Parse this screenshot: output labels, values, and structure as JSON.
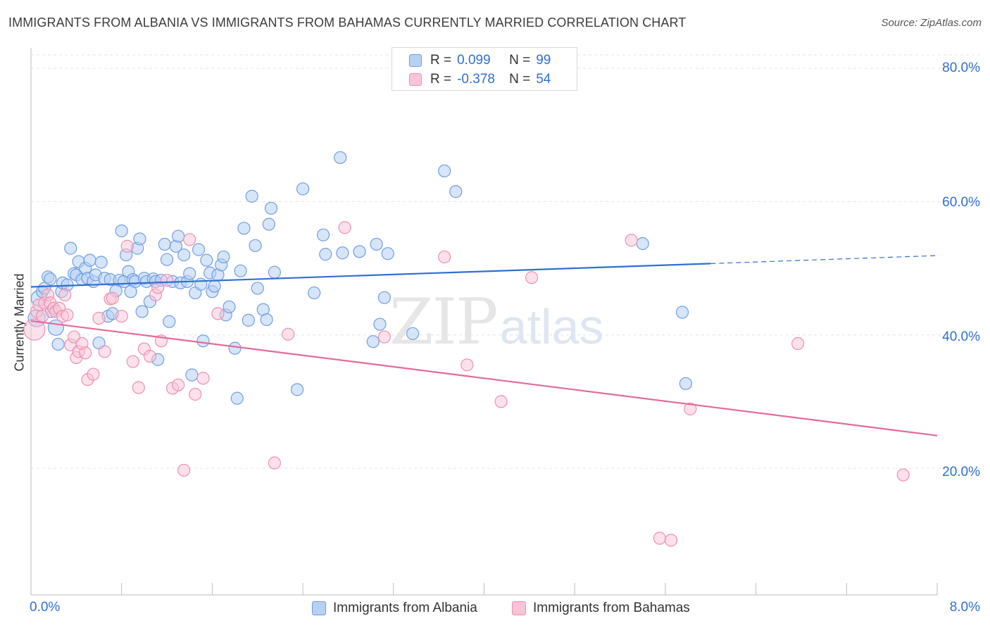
{
  "title": "IMMIGRANTS FROM ALBANIA VS IMMIGRANTS FROM BAHAMAS CURRENTLY MARRIED CORRELATION CHART",
  "source": "Source: ZipAtlas.com",
  "watermark": {
    "zip": "ZIP",
    "atlas": "atlas"
  },
  "legend": {
    "r_label": "R =",
    "n_label": "N =",
    "albania": {
      "r": "0.099",
      "n": "99"
    },
    "bahamas": {
      "r": "-0.378",
      "n": "54"
    }
  },
  "colors": {
    "albania_fill": "#b7d0f4",
    "albania_stroke": "#6f9fe0",
    "albania_line": "#2f6fd1",
    "bahamas_fill": "#f9c4d5",
    "bahamas_stroke": "#ee8fb0",
    "bahamas_line": "#e46a97",
    "tick_label": "#2f6fd1",
    "grid": "#e3e3e3"
  },
  "chart_data": {
    "type": "scatter",
    "title": "IMMIGRANTS FROM ALBANIA VS IMMIGRANTS FROM BAHAMAS CURRENTLY MARRIED CORRELATION CHART",
    "xlabel": "",
    "ylabel": "Currently Married",
    "xlim": [
      0,
      8
    ],
    "ylim": [
      1,
      82
    ],
    "x_tick_labels": [
      "0.0%",
      "8.0%"
    ],
    "y_ticks": [
      20,
      40,
      60,
      80
    ],
    "y_tick_labels": [
      "20.0%",
      "40.0%",
      "60.0%",
      "80.0%"
    ],
    "grid": true,
    "legend_position": "top-center",
    "series": [
      {
        "name": "Immigrants from Albania",
        "color": "#6f9fe0",
        "trend": {
          "x": [
            0,
            6.0
          ],
          "y": [
            47.2,
            50.7
          ],
          "dashed_extension_to_x": 8.0,
          "dashed_extension_y": 51.9
        },
        "points": [
          [
            0.05,
            42.5
          ],
          [
            0.07,
            45.5
          ],
          [
            0.1,
            46.5
          ],
          [
            0.12,
            47.0
          ],
          [
            0.15,
            48.7
          ],
          [
            0.17,
            48.4
          ],
          [
            0.18,
            43.5
          ],
          [
            0.22,
            41.1
          ],
          [
            0.24,
            38.6
          ],
          [
            0.27,
            46.5
          ],
          [
            0.28,
            47.8
          ],
          [
            0.32,
            47.5
          ],
          [
            0.35,
            53.0
          ],
          [
            0.38,
            49.2
          ],
          [
            0.4,
            49.0
          ],
          [
            0.42,
            51.0
          ],
          [
            0.45,
            48.3
          ],
          [
            0.48,
            50.0
          ],
          [
            0.5,
            48.5
          ],
          [
            0.52,
            51.2
          ],
          [
            0.55,
            48.0
          ],
          [
            0.57,
            49.0
          ],
          [
            0.6,
            38.8
          ],
          [
            0.62,
            50.9
          ],
          [
            0.65,
            48.5
          ],
          [
            0.68,
            42.8
          ],
          [
            0.7,
            48.3
          ],
          [
            0.72,
            43.2
          ],
          [
            0.75,
            46.6
          ],
          [
            0.78,
            48.2
          ],
          [
            0.8,
            55.6
          ],
          [
            0.82,
            48.0
          ],
          [
            0.84,
            52.0
          ],
          [
            0.86,
            49.5
          ],
          [
            0.88,
            46.5
          ],
          [
            0.9,
            48.3
          ],
          [
            0.92,
            48.0
          ],
          [
            0.94,
            53.0
          ],
          [
            0.96,
            54.4
          ],
          [
            0.98,
            43.5
          ],
          [
            1.0,
            48.5
          ],
          [
            1.02,
            48.0
          ],
          [
            1.05,
            45.0
          ],
          [
            1.08,
            48.4
          ],
          [
            1.1,
            48.0
          ],
          [
            1.12,
            36.3
          ],
          [
            1.15,
            48.2
          ],
          [
            1.18,
            53.6
          ],
          [
            1.2,
            51.3
          ],
          [
            1.22,
            42.0
          ],
          [
            1.25,
            48.0
          ],
          [
            1.28,
            53.3
          ],
          [
            1.3,
            54.8
          ],
          [
            1.32,
            47.8
          ],
          [
            1.35,
            52.0
          ],
          [
            1.38,
            48.0
          ],
          [
            1.4,
            49.2
          ],
          [
            1.42,
            34.0
          ],
          [
            1.45,
            46.3
          ],
          [
            1.48,
            52.8
          ],
          [
            1.5,
            47.6
          ],
          [
            1.52,
            39.1
          ],
          [
            1.55,
            51.2
          ],
          [
            1.58,
            49.3
          ],
          [
            1.6,
            46.5
          ],
          [
            1.62,
            47.3
          ],
          [
            1.65,
            49.0
          ],
          [
            1.68,
            50.5
          ],
          [
            1.7,
            51.7
          ],
          [
            1.72,
            43.0
          ],
          [
            1.75,
            44.2
          ],
          [
            1.8,
            38.0
          ],
          [
            1.82,
            30.5
          ],
          [
            1.85,
            49.6
          ],
          [
            1.88,
            56.0
          ],
          [
            1.92,
            42.2
          ],
          [
            1.95,
            60.8
          ],
          [
            1.98,
            53.4
          ],
          [
            2.0,
            47.0
          ],
          [
            2.05,
            43.8
          ],
          [
            2.08,
            42.3
          ],
          [
            2.1,
            56.6
          ],
          [
            2.12,
            59.0
          ],
          [
            2.15,
            49.4
          ],
          [
            2.35,
            31.8
          ],
          [
            2.4,
            61.9
          ],
          [
            2.5,
            46.3
          ],
          [
            2.58,
            55.0
          ],
          [
            2.6,
            52.1
          ],
          [
            2.73,
            66.6
          ],
          [
            2.75,
            52.3
          ],
          [
            2.9,
            52.5
          ],
          [
            3.02,
            39.0
          ],
          [
            3.05,
            53.6
          ],
          [
            3.08,
            41.6
          ],
          [
            3.12,
            45.6
          ],
          [
            3.15,
            52.2
          ],
          [
            3.37,
            40.2
          ],
          [
            3.65,
            64.6
          ],
          [
            3.75,
            61.5
          ],
          [
            5.4,
            53.7
          ],
          [
            5.75,
            43.4
          ],
          [
            5.78,
            32.7
          ]
        ]
      },
      {
        "name": "Immigrants from Bahamas",
        "color": "#ee8fb0",
        "trend": {
          "x": [
            0,
            8.0
          ],
          "y": [
            42.1,
            24.9
          ]
        },
        "points": [
          [
            0.03,
            40.8
          ],
          [
            0.05,
            43.5
          ],
          [
            0.07,
            44.5
          ],
          [
            0.1,
            42.8
          ],
          [
            0.12,
            44.8
          ],
          [
            0.15,
            46.0
          ],
          [
            0.17,
            44.8
          ],
          [
            0.2,
            44.0
          ],
          [
            0.22,
            43.5
          ],
          [
            0.25,
            44.0
          ],
          [
            0.28,
            42.8
          ],
          [
            0.3,
            46.0
          ],
          [
            0.32,
            43.0
          ],
          [
            0.35,
            38.5
          ],
          [
            0.38,
            39.7
          ],
          [
            0.4,
            36.6
          ],
          [
            0.42,
            37.5
          ],
          [
            0.45,
            38.7
          ],
          [
            0.48,
            37.3
          ],
          [
            0.5,
            33.3
          ],
          [
            0.55,
            34.1
          ],
          [
            0.6,
            42.5
          ],
          [
            0.65,
            37.5
          ],
          [
            0.7,
            45.4
          ],
          [
            0.72,
            45.5
          ],
          [
            0.8,
            42.8
          ],
          [
            0.85,
            53.3
          ],
          [
            0.9,
            36.0
          ],
          [
            0.95,
            32.1
          ],
          [
            1.0,
            37.9
          ],
          [
            1.05,
            36.8
          ],
          [
            1.1,
            46.0
          ],
          [
            1.12,
            47.1
          ],
          [
            1.15,
            39.1
          ],
          [
            1.2,
            48.2
          ],
          [
            1.25,
            32.0
          ],
          [
            1.3,
            32.5
          ],
          [
            1.35,
            19.7
          ],
          [
            1.4,
            54.3
          ],
          [
            1.45,
            31.1
          ],
          [
            1.52,
            33.5
          ],
          [
            1.65,
            43.2
          ],
          [
            2.15,
            20.8
          ],
          [
            2.27,
            40.1
          ],
          [
            2.77,
            56.1
          ],
          [
            3.12,
            39.7
          ],
          [
            3.65,
            51.7
          ],
          [
            3.85,
            35.5
          ],
          [
            4.15,
            30.0
          ],
          [
            4.42,
            48.6
          ],
          [
            5.3,
            54.2
          ],
          [
            5.55,
            9.5
          ],
          [
            5.65,
            9.2
          ],
          [
            5.82,
            28.9
          ],
          [
            6.77,
            38.7
          ],
          [
            7.7,
            19.0
          ]
        ]
      }
    ]
  }
}
